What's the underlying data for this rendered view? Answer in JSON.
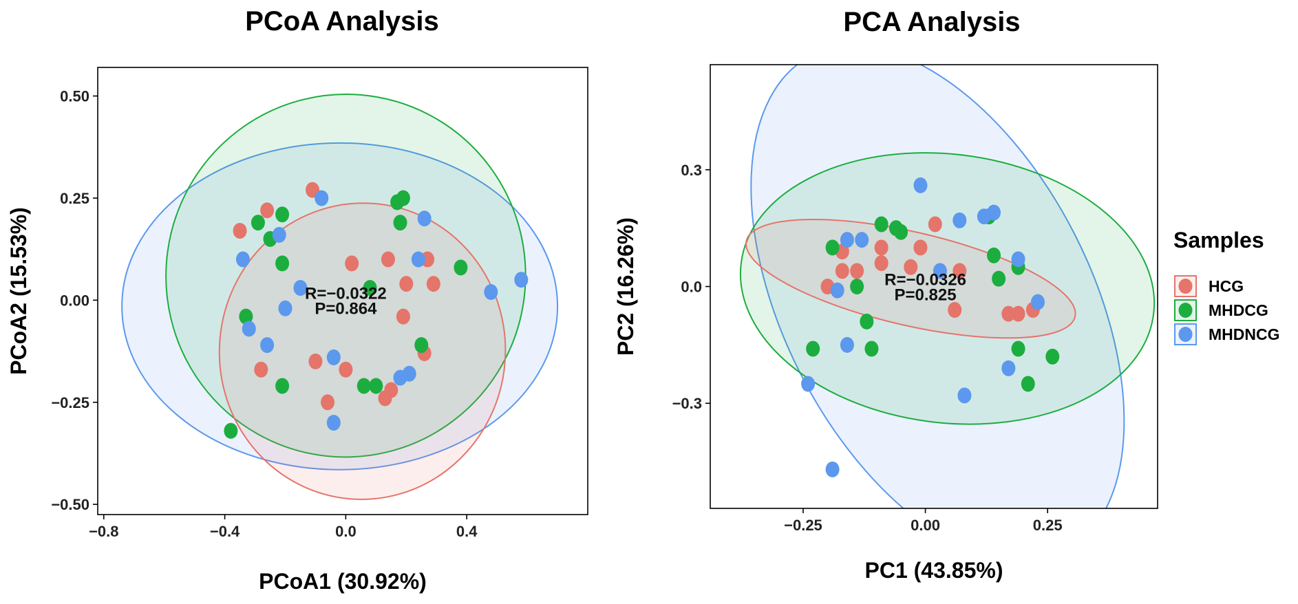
{
  "colors": {
    "HCG": "#e5746a",
    "MHDCG": "#1cad3f",
    "MHDNCG": "#5b98ee",
    "axis": "#000000",
    "stat_text": "#111111"
  },
  "legend": {
    "title": "Samples",
    "items": [
      "HCG",
      "MHDCG",
      "MHDNCG"
    ]
  },
  "chart_data": [
    {
      "type": "scatter",
      "title": "PCoA Analysis",
      "xlabel": "PCoA1 (30.92%)",
      "ylabel": "PCoA2 (15.53%)",
      "xlim": [
        -0.82,
        0.8
      ],
      "ylim": [
        -0.525,
        0.57
      ],
      "xticks": [
        -0.8,
        -0.4,
        0.0,
        0.4
      ],
      "xtick_labels": [
        "−0.8",
        "−0.4",
        "0.0",
        "0.4"
      ],
      "yticks": [
        0.5,
        0.25,
        0.0,
        -0.25,
        -0.5
      ],
      "ytick_labels": [
        "0.50",
        "0.25",
        "0.00",
        "−0.25",
        "−0.50"
      ],
      "stat_r": "R=−0.0322",
      "stat_p": "P=0.864",
      "stat_at": [
        0.0,
        0.0
      ],
      "ellipses": [
        {
          "group": "MHDNCG",
          "cx": -0.02,
          "cy": -0.015,
          "rx": 0.72,
          "ry": 0.4,
          "angle_deg": 0
        },
        {
          "group": "MHDCG",
          "cx": -0.0,
          "cy": 0.06,
          "rx": 0.6,
          "ry": 0.44,
          "angle_deg": 82
        },
        {
          "group": "HCG",
          "cx": 0.055,
          "cy": -0.125,
          "rx": 0.49,
          "ry": 0.35,
          "angle_deg": 85
        }
      ],
      "series": [
        {
          "name": "HCG",
          "points": [
            [
              -0.35,
              0.17
            ],
            [
              -0.26,
              0.22
            ],
            [
              -0.11,
              0.27
            ],
            [
              0.02,
              0.09
            ],
            [
              0.14,
              0.1
            ],
            [
              0.27,
              0.1
            ],
            [
              0.2,
              0.04
            ],
            [
              0.29,
              0.04
            ],
            [
              0.19,
              -0.04
            ],
            [
              -0.28,
              -0.17
            ],
            [
              -0.1,
              -0.15
            ],
            [
              -0.06,
              -0.25
            ],
            [
              0.0,
              -0.17
            ],
            [
              0.15,
              -0.22
            ],
            [
              0.13,
              -0.24
            ],
            [
              0.26,
              -0.13
            ]
          ]
        },
        {
          "name": "MHDCG",
          "points": [
            [
              -0.29,
              0.19
            ],
            [
              -0.21,
              0.21
            ],
            [
              -0.25,
              0.15
            ],
            [
              -0.21,
              0.09
            ],
            [
              0.17,
              0.24
            ],
            [
              0.19,
              0.25
            ],
            [
              0.18,
              0.19
            ],
            [
              0.38,
              0.08
            ],
            [
              0.08,
              0.03
            ],
            [
              -0.33,
              -0.04
            ],
            [
              0.25,
              -0.11
            ],
            [
              -0.21,
              -0.21
            ],
            [
              0.06,
              -0.21
            ],
            [
              0.1,
              -0.21
            ],
            [
              -0.38,
              -0.32
            ]
          ]
        },
        {
          "name": "MHDNCG",
          "points": [
            [
              -0.08,
              0.25
            ],
            [
              -0.22,
              0.16
            ],
            [
              -0.34,
              0.1
            ],
            [
              0.26,
              0.2
            ],
            [
              0.24,
              0.1
            ],
            [
              0.58,
              0.05
            ],
            [
              0.48,
              0.02
            ],
            [
              -0.15,
              0.03
            ],
            [
              -0.2,
              -0.02
            ],
            [
              -0.32,
              -0.07
            ],
            [
              -0.26,
              -0.11
            ],
            [
              -0.04,
              -0.14
            ],
            [
              0.18,
              -0.19
            ],
            [
              0.21,
              -0.18
            ],
            [
              -0.04,
              -0.3
            ]
          ]
        }
      ]
    },
    {
      "type": "scatter",
      "title": "PCA Analysis",
      "xlabel": "PC1 (43.85%)",
      "ylabel": "PC2 (16.26%)",
      "xlim": [
        -0.44,
        0.475
      ],
      "ylim": [
        -0.57,
        0.57
      ],
      "xticks": [
        -0.25,
        0.0,
        0.25
      ],
      "xtick_labels": [
        "−0.25",
        "0.00",
        "0.25"
      ],
      "yticks": [
        0.3,
        0.0,
        -0.3
      ],
      "ytick_labels": [
        "0.3",
        "0.0",
        "−0.3"
      ],
      "stat_r": "R=−0.0326",
      "stat_p": "P=0.825",
      "stat_at": [
        0.0,
        0.0
      ],
      "ellipses": [
        {
          "group": "MHDNCG",
          "cx": 0.025,
          "cy": -0.045,
          "rx": 0.57,
          "ry": 0.395,
          "angle_deg": -63
        },
        {
          "group": "MHDCG",
          "cx": 0.045,
          "cy": -0.005,
          "rx": 0.425,
          "ry": 0.345,
          "angle_deg": -7
        },
        {
          "group": "HCG",
          "cx": -0.03,
          "cy": 0.02,
          "rx": 0.345,
          "ry": 0.12,
          "angle_deg": -13
        }
      ],
      "series": [
        {
          "name": "HCG",
          "points": [
            [
              -0.17,
              0.09
            ],
            [
              -0.09,
              0.1
            ],
            [
              -0.01,
              0.1
            ],
            [
              0.02,
              0.16
            ],
            [
              -0.17,
              0.04
            ],
            [
              -0.14,
              0.04
            ],
            [
              -0.09,
              0.06
            ],
            [
              -0.03,
              0.05
            ],
            [
              -0.2,
              0.0
            ],
            [
              0.07,
              0.04
            ],
            [
              0.06,
              -0.06
            ],
            [
              0.17,
              -0.07
            ],
            [
              0.19,
              -0.07
            ],
            [
              0.22,
              -0.06
            ]
          ]
        },
        {
          "name": "MHDCG",
          "points": [
            [
              -0.09,
              0.16
            ],
            [
              -0.06,
              0.15
            ],
            [
              -0.05,
              0.14
            ],
            [
              -0.19,
              0.1
            ],
            [
              0.13,
              0.18
            ],
            [
              0.14,
              0.08
            ],
            [
              0.15,
              0.02
            ],
            [
              0.19,
              0.05
            ],
            [
              -0.14,
              0.0
            ],
            [
              -0.12,
              -0.09
            ],
            [
              -0.23,
              -0.16
            ],
            [
              -0.11,
              -0.16
            ],
            [
              0.19,
              -0.16
            ],
            [
              0.21,
              -0.25
            ],
            [
              0.26,
              -0.18
            ]
          ]
        },
        {
          "name": "MHDNCG",
          "points": [
            [
              -0.01,
              0.26
            ],
            [
              0.07,
              0.17
            ],
            [
              0.12,
              0.18
            ],
            [
              0.14,
              0.19
            ],
            [
              -0.16,
              0.12
            ],
            [
              -0.13,
              0.12
            ],
            [
              0.03,
              0.04
            ],
            [
              0.19,
              0.07
            ],
            [
              -0.18,
              -0.01
            ],
            [
              0.23,
              -0.04
            ],
            [
              -0.16,
              -0.15
            ],
            [
              0.17,
              -0.21
            ],
            [
              0.08,
              -0.28
            ],
            [
              -0.24,
              -0.25
            ],
            [
              -0.19,
              -0.47
            ]
          ]
        }
      ]
    }
  ]
}
